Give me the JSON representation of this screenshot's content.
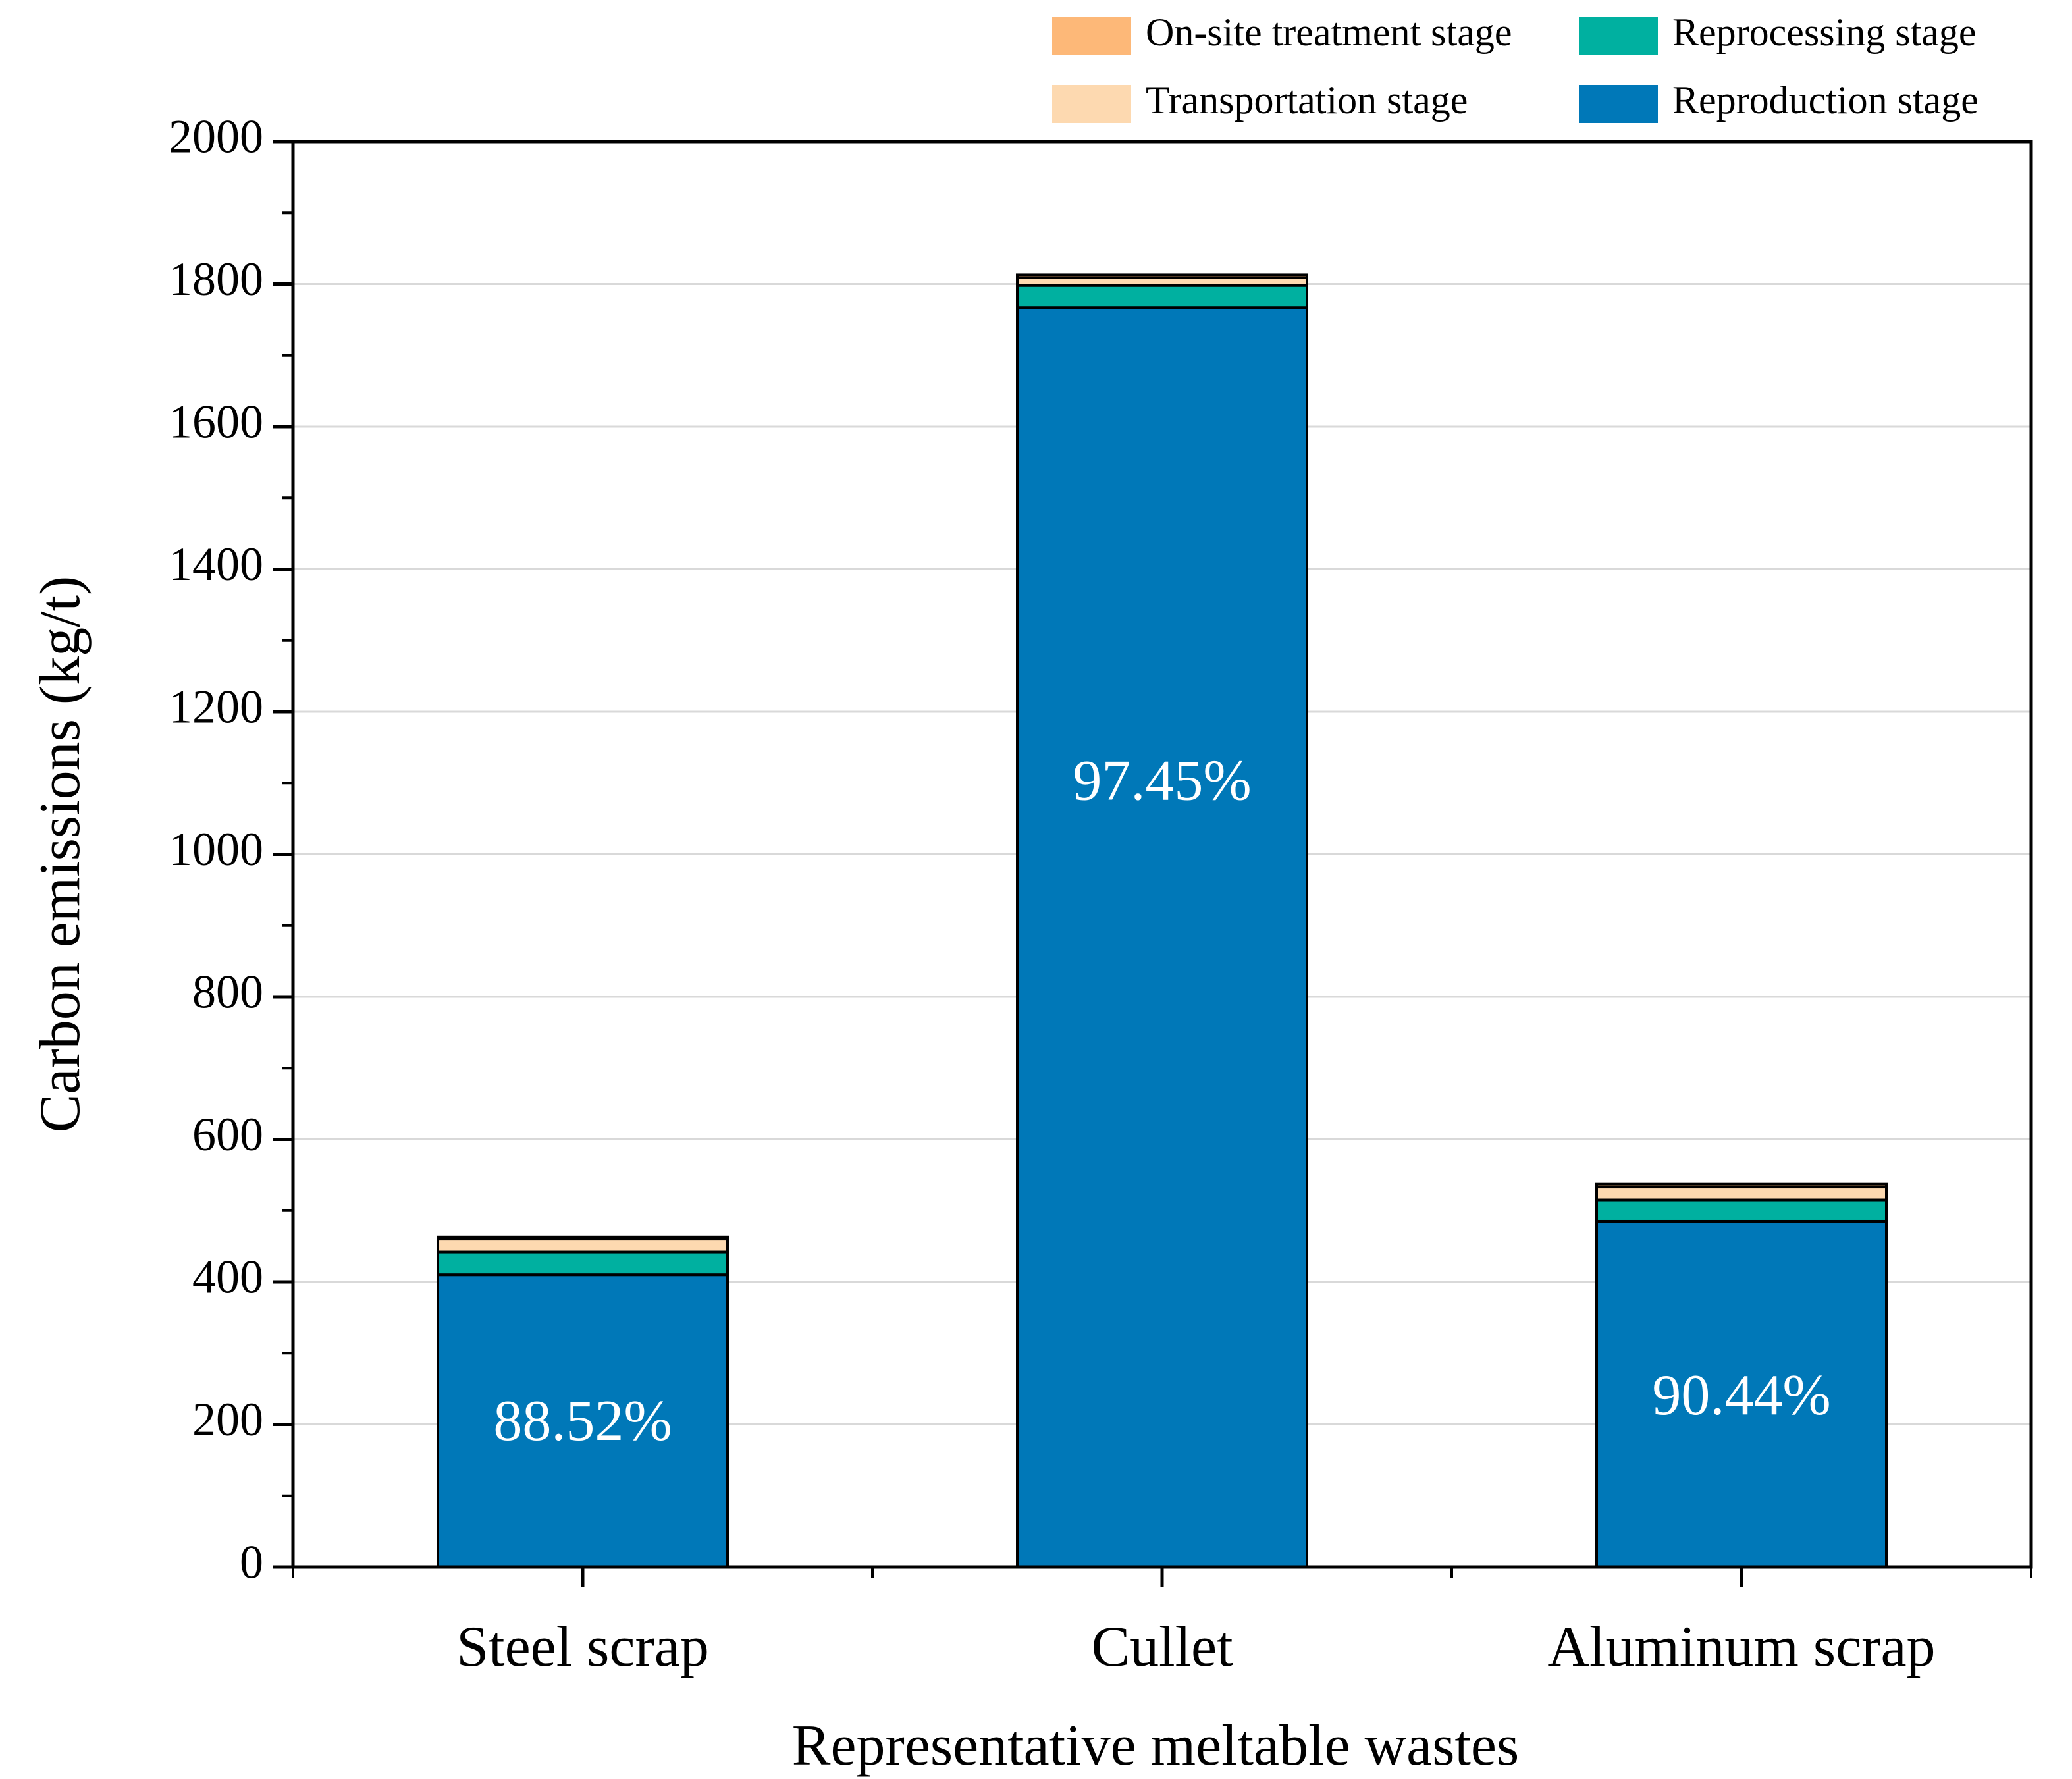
{
  "chart_data": {
    "type": "bar",
    "stacked": true,
    "title": "",
    "xlabel": "Representative meltable wastes",
    "ylabel": "Carbon emissions (kg/t)",
    "ylim": [
      0,
      2000
    ],
    "yticks": [
      0,
      200,
      400,
      600,
      800,
      1000,
      1200,
      1400,
      1600,
      1800,
      2000
    ],
    "grid": true,
    "legend_position": "top-right",
    "categories": [
      "Steel scrap",
      "Cullet",
      "Aluminum scrap"
    ],
    "series": [
      {
        "name": "Reproduction stage",
        "color": "#0078b8",
        "values": [
          410,
          1767,
          485
        ]
      },
      {
        "name": "Reprocessing stage",
        "color": "#00b0a0",
        "values": [
          32,
          31,
          30
        ]
      },
      {
        "name": "Transportation stage",
        "color": "#fdd9b0",
        "values": [
          18,
          11,
          18
        ]
      },
      {
        "name": "On-site treatment stage",
        "color": "#fdb878",
        "values": [
          3,
          4,
          4
        ]
      }
    ],
    "bar_annotations": [
      "88.52%",
      "97.45%",
      "90.44%"
    ],
    "legend_order": [
      "On-site treatment stage",
      "Reprocessing stage",
      "Transportation stage",
      "Reproduction stage"
    ]
  }
}
